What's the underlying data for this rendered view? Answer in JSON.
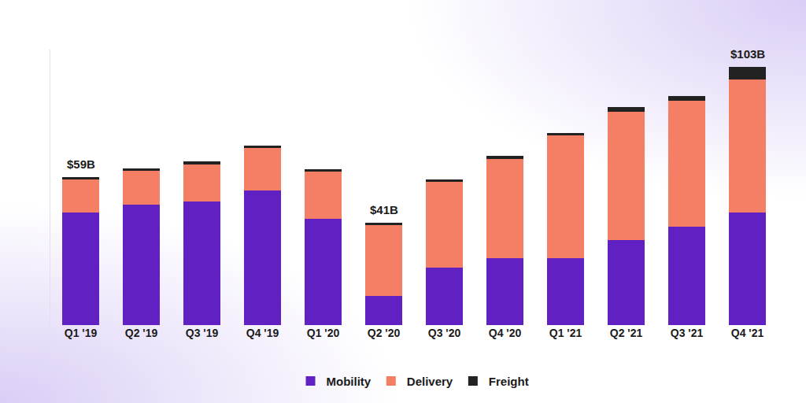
{
  "chart_data": {
    "type": "bar",
    "stacked": true,
    "categories": [
      "Q1 '19",
      "Q2 '19",
      "Q3 '19",
      "Q4 '19",
      "Q1 '20",
      "Q2 '20",
      "Q3 '20",
      "Q4 '20",
      "Q1 '21",
      "Q2 '21",
      "Q3 '21",
      "Q4 '21"
    ],
    "series": [
      {
        "name": "Mobility",
        "color": "#6120c2",
        "values": [
          45,
          48,
          49.5,
          53.6,
          42.3,
          11.5,
          22.9,
          26.6,
          26.6,
          33.9,
          39.2,
          44.8
        ]
      },
      {
        "name": "Delivery",
        "color": "#f47f64",
        "values": [
          13,
          13.5,
          14.5,
          17.2,
          19.1,
          28.5,
          34.2,
          39.8,
          49.2,
          51.4,
          50.5,
          53.2
        ]
      },
      {
        "name": "Freight",
        "color": "#222222",
        "values": [
          1,
          1,
          1.3,
          0.9,
          0.9,
          1,
          0.9,
          1.3,
          0.9,
          1.9,
          1.9,
          5
        ]
      }
    ],
    "annotations": [
      {
        "x": "Q1 '19",
        "y": 59,
        "text": "$59B"
      },
      {
        "x": "Q2 '20",
        "y": 41,
        "text": "$41B"
      },
      {
        "x": "Q4 '21",
        "y": 103,
        "text": "$103B"
      }
    ],
    "ylim": [
      0,
      110
    ],
    "grid": false,
    "legend": "bottom",
    "tick_labels": "x"
  }
}
